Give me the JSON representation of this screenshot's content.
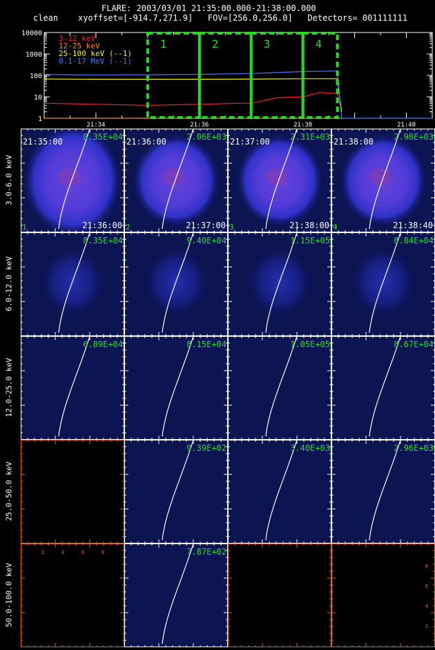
{
  "header": {
    "flare_line": "FLARE: 2003/03/01 21:35:00.000-21:38:00.000",
    "method": "clean",
    "xyoffset_label": "xyoffset=",
    "xyoffset_value": "[-914.7,271.9]",
    "fov_label": "FOV=",
    "fov_value": "[256.0,256.0]",
    "detectors_label": "Detectors=",
    "detectors_value": "001111111"
  },
  "chart_data": [
    {
      "type": "line",
      "yscale": "log",
      "ylim": [
        1,
        10000
      ],
      "yticks": [
        "1",
        "10",
        "100",
        "1000",
        "10000"
      ],
      "xticks": [
        "21:34",
        "21:36",
        "21:38",
        "21:40"
      ],
      "x_range": [
        "21:33:00",
        "21:40:30"
      ],
      "legend_position": "top-left",
      "series": [
        {
          "name": "3-12 keV",
          "color": "#ff2020",
          "x": [
            "21:33:00",
            "21:34:00",
            "21:35:00",
            "21:36:00",
            "21:36:45",
            "21:37:00",
            "21:37:30",
            "21:38:00",
            "21:38:20",
            "21:38:40",
            "21:38:45"
          ],
          "values": [
            5,
            4.5,
            4,
            4.5,
            5,
            5,
            9,
            10,
            16,
            14,
            2
          ]
        },
        {
          "name": "12-25 keV",
          "color": "#ff8a1c",
          "x": [
            "21:33:00",
            "21:38:00",
            "21:38:45"
          ],
          "values": [
            1,
            1,
            1
          ]
        },
        {
          "name": "25-100 keV (--1)",
          "color": "#f2f020",
          "x": [
            "21:33:00",
            "21:34:00",
            "21:35:00",
            "21:36:00",
            "21:37:00",
            "21:38:00",
            "21:38:40",
            "21:38:45"
          ],
          "values": [
            68,
            66,
            66,
            66,
            67,
            70,
            70,
            2
          ]
        },
        {
          "name": "0.1-17 MeV (--1)",
          "color": "#3c7cff",
          "x": [
            "21:33:00",
            "21:34:00",
            "21:35:00",
            "21:36:00",
            "21:37:00",
            "21:38:00",
            "21:38:40",
            "21:38:45",
            "21:40:30"
          ],
          "values": [
            110,
            105,
            108,
            112,
            122,
            150,
            160,
            1,
            1
          ]
        }
      ],
      "intervals": [
        {
          "label": "1",
          "start": "21:35:00",
          "end": "21:36:00"
        },
        {
          "label": "2",
          "start": "21:36:00",
          "end": "21:37:00"
        },
        {
          "label": "3",
          "start": "21:37:00",
          "end": "21:38:00"
        },
        {
          "label": "4",
          "start": "21:38:00",
          "end": "21:38:40"
        }
      ],
      "interval_color": "#22dd22"
    },
    {
      "type": "heatmap",
      "rows": [
        "3.0-6.0 keV",
        "6.0-12.0 keV",
        "12.0-25.0 keV",
        "25.0-50.0 keV",
        "50.0-100.0 keV"
      ],
      "columns": [
        "1",
        "2",
        "3",
        "4"
      ],
      "start_times": [
        "21:35:00",
        "21:36:00",
        "21:37:00",
        "21:38:00"
      ],
      "end_times": [
        "21:36:00",
        "21:37:00",
        "21:38:00",
        "21:38:40"
      ],
      "peak_values": [
        [
          "8.35E+04",
          "2.06E+03",
          "2.31E+03",
          "2.98E+03"
        ],
        [
          "8.35E+04",
          "9.40E+04",
          "1.15E+05",
          "8.84E+04"
        ],
        [
          "6.89E+04",
          "8.15E+04",
          "1.05E+05",
          "8.67E+04"
        ],
        [
          "",
          "9.39E+02",
          "3.40E+03",
          "2.96E+03"
        ],
        [
          "",
          "7.87E+02",
          "",
          ""
        ]
      ],
      "empty_axis_ticks": [
        "2",
        "4",
        "6",
        "8"
      ]
    }
  ]
}
